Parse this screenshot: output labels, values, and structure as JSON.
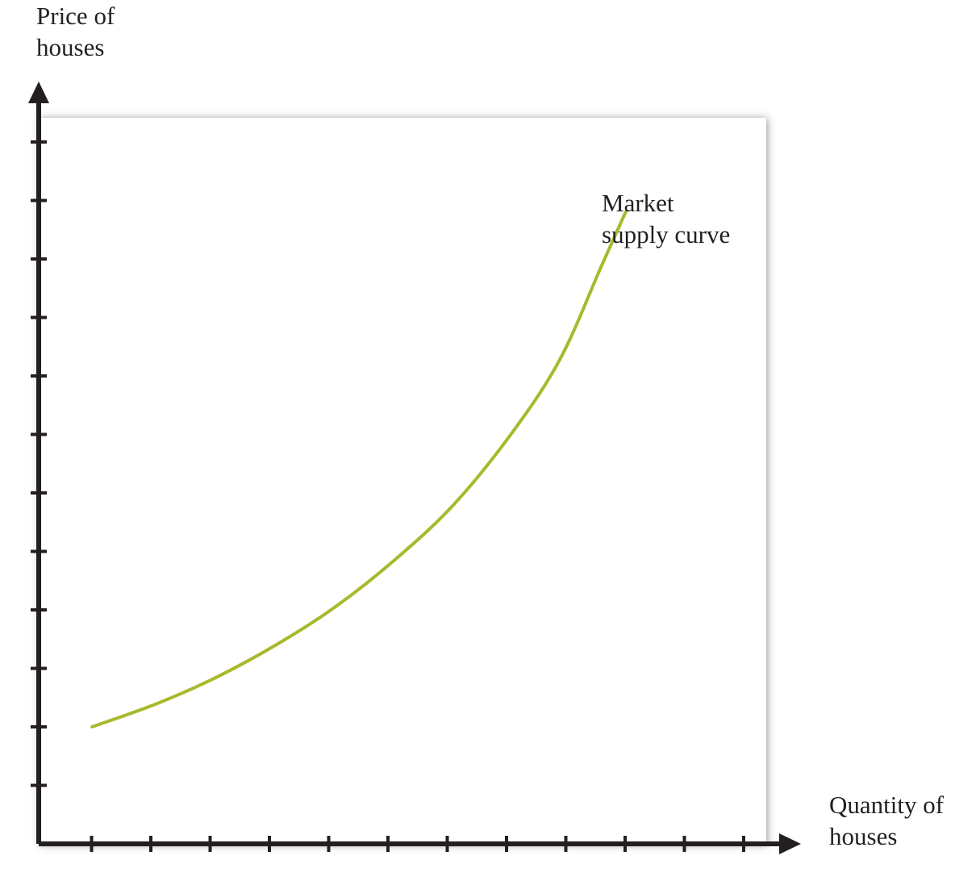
{
  "chart_data": {
    "type": "line",
    "title": "",
    "ylabel_lines": [
      "Price of",
      "houses"
    ],
    "xlabel_lines": [
      "Quantity of",
      "houses"
    ],
    "x_tick_count": 12,
    "y_tick_count": 12,
    "xlim": [
      0,
      12
    ],
    "ylim": [
      0,
      12.5
    ],
    "grid": false,
    "series": [
      {
        "name": "Market supply curve",
        "label_lines": [
          "Market",
          "supply curve"
        ],
        "color": "#a8b92c",
        "x": [
          0.9,
          2.0,
          3.0,
          4.0,
          5.0,
          6.0,
          7.0,
          8.0,
          8.8,
          9.5,
          9.9
        ],
        "y": [
          2.0,
          2.4,
          2.85,
          3.4,
          4.05,
          4.85,
          5.8,
          7.05,
          8.3,
          9.9,
          10.8
        ]
      }
    ]
  },
  "colors": {
    "axis": "#231f20",
    "plot_background": "#ffffff",
    "shadow": "#888888"
  }
}
